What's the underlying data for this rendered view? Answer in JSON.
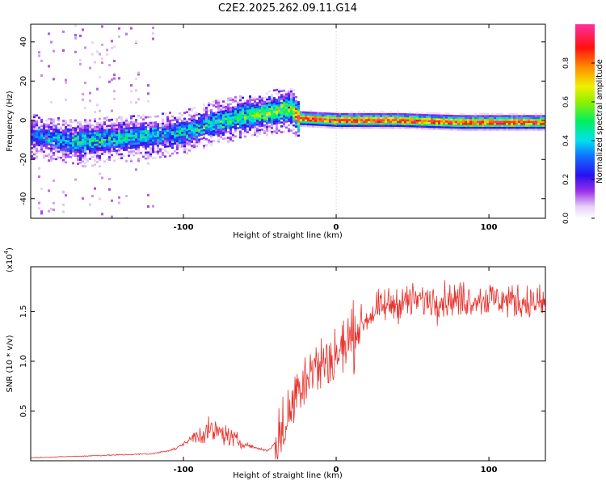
{
  "figure_title": "C2E2.2025.262.09.11.G14",
  "colors": {
    "snr_line": "#e8302a",
    "axis": "#000000",
    "background": "#ffffff"
  },
  "chart_data": [
    {
      "type": "heatmap",
      "title": "C2E2.2025.262.09.11.G14",
      "xlabel": "Height of straight line (km)",
      "ylabel": "Frequency (Hz)",
      "xlim": [
        -200,
        137
      ],
      "ylim": [
        -50,
        49
      ],
      "xticks": [
        -100,
        0,
        100
      ],
      "yticks": [
        -40,
        -20,
        0,
        20,
        40
      ],
      "colorbar": {
        "label": "Normalized spectral amplitude",
        "range": [
          0.0,
          1.0
        ],
        "ticks": [
          "0.0",
          "0.2",
          "0.4",
          "0.6",
          "0.8"
        ],
        "tick_values": [
          0.0,
          0.2,
          0.4,
          0.6,
          0.8
        ]
      },
      "ridge": {
        "description_points_x": [
          -200,
          -170,
          -140,
          -120,
          -100,
          -80,
          -60,
          -45,
          -30,
          -25,
          0,
          40,
          80,
          100,
          137
        ],
        "center_freq_hz": [
          -8,
          -11,
          -9,
          -8,
          -6,
          -1,
          2,
          4,
          6,
          1,
          0,
          0,
          -1,
          -1,
          -1
        ],
        "peak_amplitude": [
          0.3,
          0.45,
          0.45,
          0.4,
          0.4,
          0.45,
          0.55,
          0.6,
          0.6,
          0.95,
          0.95,
          0.95,
          0.95,
          0.95,
          0.95
        ]
      }
    },
    {
      "type": "line",
      "xlabel": "Height of straight line (km)",
      "ylabel": "SNR (10 * v/v)",
      "y_scale_label": "(x10",
      "y_scale_exponent": "4",
      "xlim": [
        -200,
        137
      ],
      "ylim": [
        0,
        1.95
      ],
      "xticks": [
        -100,
        0,
        100
      ],
      "yticks": [
        0.5,
        1.0,
        1.5
      ],
      "ytick_labels": [
        "0.5",
        "1.0",
        "1.5"
      ],
      "series": [
        {
          "name": "SNR",
          "x": [
            -200,
            -180,
            -160,
            -140,
            -120,
            -105,
            -95,
            -85,
            -75,
            -65,
            -55,
            -45,
            -38,
            -32,
            -28,
            -25,
            -22,
            -18,
            -12,
            -5,
            0,
            8,
            15,
            25,
            35,
            45,
            60,
            80,
            100,
            120,
            137
          ],
          "y": [
            0.03,
            0.04,
            0.05,
            0.06,
            0.07,
            0.12,
            0.22,
            0.3,
            0.28,
            0.2,
            0.14,
            0.1,
            0.2,
            0.4,
            0.6,
            0.75,
            0.82,
            0.9,
            0.95,
            1.0,
            1.05,
            1.2,
            1.35,
            1.5,
            1.57,
            1.6,
            1.62,
            1.62,
            1.63,
            1.6,
            1.58
          ]
        }
      ]
    }
  ]
}
